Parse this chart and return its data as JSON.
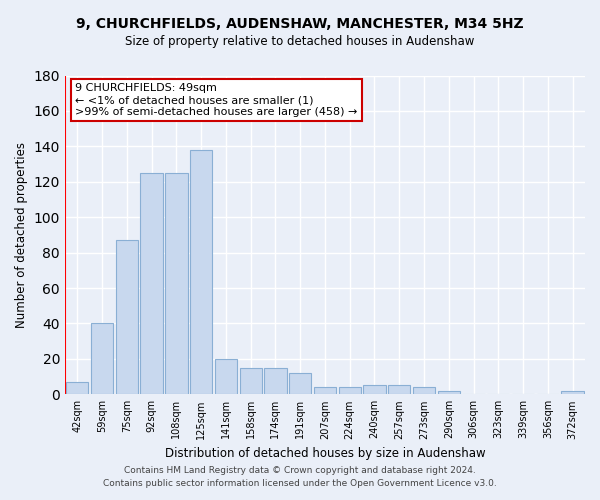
{
  "title": "9, CHURCHFIELDS, AUDENSHAW, MANCHESTER, M34 5HZ",
  "subtitle": "Size of property relative to detached houses in Audenshaw",
  "xlabel": "Distribution of detached houses by size in Audenshaw",
  "ylabel": "Number of detached properties",
  "bar_color": "#c8d8ee",
  "bar_edge_color": "#8aafd4",
  "background_color": "#eaeff8",
  "grid_color": "#ffffff",
  "categories": [
    "42sqm",
    "59sqm",
    "75sqm",
    "92sqm",
    "108sqm",
    "125sqm",
    "141sqm",
    "158sqm",
    "174sqm",
    "191sqm",
    "207sqm",
    "224sqm",
    "240sqm",
    "257sqm",
    "273sqm",
    "290sqm",
    "306sqm",
    "323sqm",
    "339sqm",
    "356sqm",
    "372sqm"
  ],
  "values": [
    7,
    40,
    87,
    125,
    125,
    138,
    20,
    15,
    15,
    12,
    4,
    4,
    5,
    5,
    4,
    2,
    0,
    0,
    0,
    0,
    2
  ],
  "ylim": [
    0,
    180
  ],
  "yticks": [
    0,
    20,
    40,
    60,
    80,
    100,
    120,
    140,
    160,
    180
  ],
  "red_line_x": -0.5,
  "annotation_line1": "9 CHURCHFIELDS: 49sqm",
  "annotation_line2": "← <1% of detached houses are smaller (1)",
  "annotation_line3": ">99% of semi-detached houses are larger (458) →",
  "annotation_box_color": "#ffffff",
  "annotation_border_color": "#cc0000",
  "footer_line1": "Contains HM Land Registry data © Crown copyright and database right 2024.",
  "footer_line2": "Contains public sector information licensed under the Open Government Licence v3.0."
}
